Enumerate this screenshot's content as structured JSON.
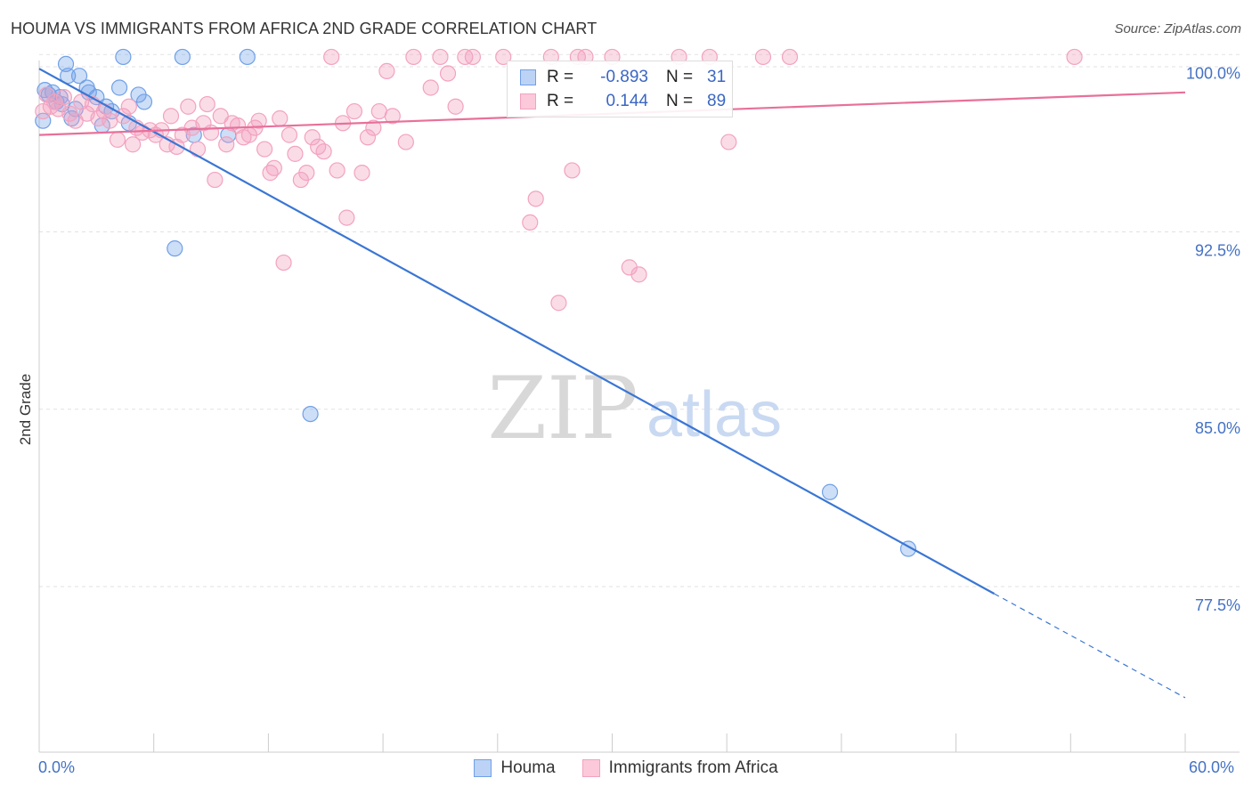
{
  "chart_data": {
    "type": "scatter",
    "title": "HOUMA VS IMMIGRANTS FROM AFRICA 2ND GRADE CORRELATION CHART",
    "source": "Source: ZipAtlas.com",
    "ylabel": "2nd Grade",
    "xlabel": "",
    "xlim": [
      0,
      60
    ],
    "ylim": [
      70.5,
      100.5
    ],
    "x_tick_labels": [
      "0.0%",
      "60.0%"
    ],
    "y_ticks": [
      {
        "value": 100.0,
        "label": "100.0%"
      },
      {
        "value": 92.5,
        "label": "92.5%"
      },
      {
        "value": 85.0,
        "label": "85.0%"
      },
      {
        "value": 77.5,
        "label": "77.5%"
      }
    ],
    "watermark": {
      "part1": "ZIP",
      "part2": "atlas"
    },
    "legend": {
      "r_label": "R =",
      "n_label": "N =",
      "entries": [
        {
          "r": "-0.893",
          "n": "31"
        },
        {
          "r": "0.144",
          "n": "89"
        }
      ]
    },
    "series": [
      {
        "name": "Houma",
        "color": "#6fa0e8",
        "line_color": "#3a76d4",
        "trend": {
          "x0": 0,
          "y0": 99.4,
          "x1": 50,
          "y1": 77.2,
          "dash_to_x": 60,
          "dash_to_y": 72.8
        },
        "points": [
          [
            0.2,
            97.2
          ],
          [
            0.5,
            98.3
          ],
          [
            0.7,
            98.4
          ],
          [
            0.9,
            98.0
          ],
          [
            1.1,
            98.2
          ],
          [
            1.4,
            99.6
          ],
          [
            1.5,
            99.1
          ],
          [
            1.7,
            97.3
          ],
          [
            1.9,
            97.7
          ],
          [
            2.1,
            99.1
          ],
          [
            2.6,
            98.4
          ],
          [
            3.0,
            98.2
          ],
          [
            3.3,
            97.0
          ],
          [
            3.5,
            97.8
          ],
          [
            3.8,
            97.6
          ],
          [
            4.2,
            98.6
          ],
          [
            4.4,
            99.9
          ],
          [
            4.7,
            97.1
          ],
          [
            5.2,
            98.3
          ],
          [
            5.5,
            98.0
          ],
          [
            7.1,
            91.8
          ],
          [
            7.5,
            99.9
          ],
          [
            8.1,
            96.6
          ],
          [
            9.9,
            96.6
          ],
          [
            10.9,
            99.9
          ],
          [
            14.2,
            84.8
          ],
          [
            41.4,
            81.5
          ],
          [
            45.5,
            79.1
          ],
          [
            0.3,
            98.5
          ],
          [
            2.5,
            98.6
          ],
          [
            1.2,
            97.9
          ]
        ]
      },
      {
        "name": "Immigrants from Africa",
        "color": "#f3a2bf",
        "line_color": "#e8709a",
        "trend": {
          "x0": 0,
          "y0": 96.6,
          "x1": 60,
          "y1": 98.4
        },
        "points": [
          [
            0.2,
            97.6
          ],
          [
            0.4,
            98.3
          ],
          [
            0.6,
            97.8
          ],
          [
            0.8,
            98.0
          ],
          [
            1.0,
            97.7
          ],
          [
            1.3,
            98.2
          ],
          [
            1.6,
            97.5
          ],
          [
            1.9,
            97.2
          ],
          [
            2.2,
            98.0
          ],
          [
            2.5,
            97.5
          ],
          [
            2.8,
            97.9
          ],
          [
            3.1,
            97.3
          ],
          [
            3.4,
            97.6
          ],
          [
            3.7,
            97.2
          ],
          [
            4.1,
            96.4
          ],
          [
            4.4,
            97.4
          ],
          [
            4.7,
            97.8
          ],
          [
            4.9,
            96.2
          ],
          [
            5.1,
            96.9
          ],
          [
            5.4,
            96.7
          ],
          [
            5.8,
            96.8
          ],
          [
            6.1,
            96.6
          ],
          [
            6.4,
            96.8
          ],
          [
            6.7,
            96.2
          ],
          [
            6.9,
            97.4
          ],
          [
            7.2,
            96.1
          ],
          [
            7.5,
            96.6
          ],
          [
            7.8,
            97.8
          ],
          [
            8.0,
            96.9
          ],
          [
            8.3,
            96.0
          ],
          [
            8.6,
            97.1
          ],
          [
            8.8,
            97.9
          ],
          [
            9.0,
            96.7
          ],
          [
            9.2,
            94.7
          ],
          [
            9.5,
            97.4
          ],
          [
            9.8,
            96.2
          ],
          [
            10.1,
            97.1
          ],
          [
            10.4,
            97.0
          ],
          [
            10.7,
            96.5
          ],
          [
            11.0,
            96.6
          ],
          [
            11.3,
            96.9
          ],
          [
            11.5,
            97.2
          ],
          [
            11.8,
            96.0
          ],
          [
            12.1,
            95.0
          ],
          [
            12.3,
            95.2
          ],
          [
            12.6,
            97.3
          ],
          [
            12.8,
            91.2
          ],
          [
            13.1,
            96.6
          ],
          [
            13.4,
            95.8
          ],
          [
            13.7,
            94.7
          ],
          [
            14.0,
            95.0
          ],
          [
            14.3,
            96.5
          ],
          [
            14.6,
            96.1
          ],
          [
            14.9,
            95.9
          ],
          [
            15.3,
            99.9
          ],
          [
            15.6,
            95.1
          ],
          [
            15.9,
            97.1
          ],
          [
            16.1,
            93.1
          ],
          [
            16.5,
            97.6
          ],
          [
            16.9,
            95.0
          ],
          [
            17.2,
            96.5
          ],
          [
            17.5,
            96.9
          ],
          [
            17.8,
            97.6
          ],
          [
            18.2,
            99.3
          ],
          [
            18.5,
            97.4
          ],
          [
            19.2,
            96.3
          ],
          [
            19.6,
            99.9
          ],
          [
            20.5,
            98.6
          ],
          [
            21.0,
            99.9
          ],
          [
            21.4,
            99.2
          ],
          [
            21.8,
            97.8
          ],
          [
            22.3,
            99.9
          ],
          [
            22.7,
            99.9
          ],
          [
            24.3,
            99.9
          ],
          [
            25.7,
            92.9
          ],
          [
            26.0,
            93.9
          ],
          [
            26.8,
            99.9
          ],
          [
            27.2,
            89.5
          ],
          [
            27.9,
            95.1
          ],
          [
            28.2,
            99.9
          ],
          [
            28.6,
            99.9
          ],
          [
            30.0,
            99.9
          ],
          [
            30.9,
            91.0
          ],
          [
            31.4,
            90.7
          ],
          [
            33.5,
            99.9
          ],
          [
            35.1,
            99.9
          ],
          [
            36.1,
            96.3
          ],
          [
            37.9,
            99.9
          ],
          [
            39.3,
            99.9
          ],
          [
            54.2,
            99.9
          ]
        ]
      }
    ]
  }
}
